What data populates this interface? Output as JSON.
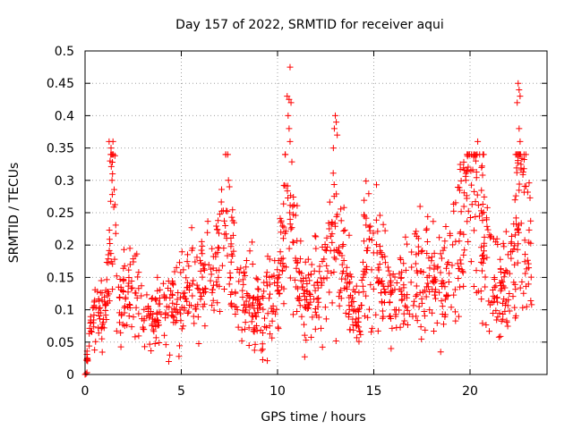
{
  "chart_data": {
    "type": "scatter",
    "title": "Day 157 of 2022, SRMTID for receiver aqui",
    "xlabel": "GPS time / hours",
    "ylabel": "SRMTID / TECUs",
    "xlim": [
      0,
      24
    ],
    "ylim": [
      0,
      0.5
    ],
    "x_ticks": [
      0,
      5,
      10,
      15,
      20
    ],
    "x_tick_labels": [
      "0",
      "5",
      "10",
      "15",
      "20"
    ],
    "y_ticks": [
      0,
      0.05,
      0.1,
      0.15,
      0.2,
      0.25,
      0.3,
      0.35,
      0.4,
      0.45,
      0.5
    ],
    "y_tick_labels": [
      "0",
      "0.05",
      "0.1",
      "0.15",
      "0.2",
      "0.25",
      "0.3",
      "0.35",
      "0.4",
      "0.45",
      "0.5"
    ],
    "grid": true,
    "marker": "+",
    "color": "#ff0000",
    "profile": [
      [
        0.0,
        0.0
      ],
      [
        0.1,
        0.002
      ],
      [
        0.3,
        0.09
      ],
      [
        0.8,
        0.1
      ],
      [
        1.0,
        0.07
      ],
      [
        1.2,
        0.16
      ],
      [
        1.4,
        0.3
      ],
      [
        1.6,
        0.2
      ],
      [
        1.8,
        0.1
      ],
      [
        2.2,
        0.13
      ],
      [
        2.5,
        0.15
      ],
      [
        3.0,
        0.09
      ],
      [
        3.5,
        0.09
      ],
      [
        4.0,
        0.1
      ],
      [
        4.5,
        0.1
      ],
      [
        5.0,
        0.13
      ],
      [
        5.5,
        0.15
      ],
      [
        6.0,
        0.14
      ],
      [
        6.5,
        0.16
      ],
      [
        7.0,
        0.17
      ],
      [
        7.4,
        0.23
      ],
      [
        7.7,
        0.16
      ],
      [
        8.0,
        0.13
      ],
      [
        8.5,
        0.12
      ],
      [
        9.0,
        0.1
      ],
      [
        9.5,
        0.11
      ],
      [
        10.0,
        0.13
      ],
      [
        10.5,
        0.3
      ],
      [
        10.9,
        0.2
      ],
      [
        11.3,
        0.12
      ],
      [
        12.0,
        0.13
      ],
      [
        12.5,
        0.14
      ],
      [
        13.0,
        0.22
      ],
      [
        13.4,
        0.18
      ],
      [
        13.7,
        0.12
      ],
      [
        14.0,
        0.09
      ],
      [
        14.3,
        0.08
      ],
      [
        14.6,
        0.2
      ],
      [
        15.0,
        0.18
      ],
      [
        15.5,
        0.14
      ],
      [
        16.0,
        0.1
      ],
      [
        16.5,
        0.13
      ],
      [
        17.0,
        0.12
      ],
      [
        17.5,
        0.16
      ],
      [
        18.0,
        0.14
      ],
      [
        18.5,
        0.13
      ],
      [
        19.0,
        0.17
      ],
      [
        19.5,
        0.25
      ],
      [
        20.0,
        0.27
      ],
      [
        20.3,
        0.3
      ],
      [
        20.7,
        0.22
      ],
      [
        21.0,
        0.18
      ],
      [
        21.3,
        0.13
      ],
      [
        21.7,
        0.14
      ],
      [
        22.2,
        0.16
      ],
      [
        22.5,
        0.3
      ],
      [
        22.8,
        0.25
      ],
      [
        23.0,
        0.2
      ],
      [
        23.2,
        0.17
      ]
    ],
    "peaks": [
      [
        0.0,
        0.0
      ],
      [
        0.05,
        0.001
      ],
      [
        0.1,
        0.003
      ],
      [
        1.25,
        0.36
      ],
      [
        1.35,
        0.35
      ],
      [
        1.45,
        0.36
      ],
      [
        1.3,
        0.33
      ],
      [
        1.4,
        0.3
      ],
      [
        4.35,
        0.02
      ],
      [
        4.4,
        0.03
      ],
      [
        7.45,
        0.3
      ],
      [
        7.5,
        0.29
      ],
      [
        10.5,
        0.43
      ],
      [
        10.6,
        0.425
      ],
      [
        10.7,
        0.42
      ],
      [
        10.65,
        0.475
      ],
      [
        10.55,
        0.4
      ],
      [
        10.6,
        0.38
      ],
      [
        10.65,
        0.36
      ],
      [
        13.0,
        0.4
      ],
      [
        13.05,
        0.39
      ],
      [
        12.95,
        0.38
      ],
      [
        13.1,
        0.37
      ],
      [
        12.9,
        0.35
      ],
      [
        15.9,
        0.04
      ],
      [
        20.4,
        0.36
      ],
      [
        20.5,
        0.34
      ],
      [
        20.3,
        0.33
      ],
      [
        20.6,
        0.32
      ],
      [
        22.5,
        0.45
      ],
      [
        22.55,
        0.44
      ],
      [
        22.6,
        0.43
      ],
      [
        22.45,
        0.42
      ],
      [
        22.55,
        0.38
      ],
      [
        22.6,
        0.36
      ]
    ],
    "series_points": 1300,
    "seed": 157
  }
}
